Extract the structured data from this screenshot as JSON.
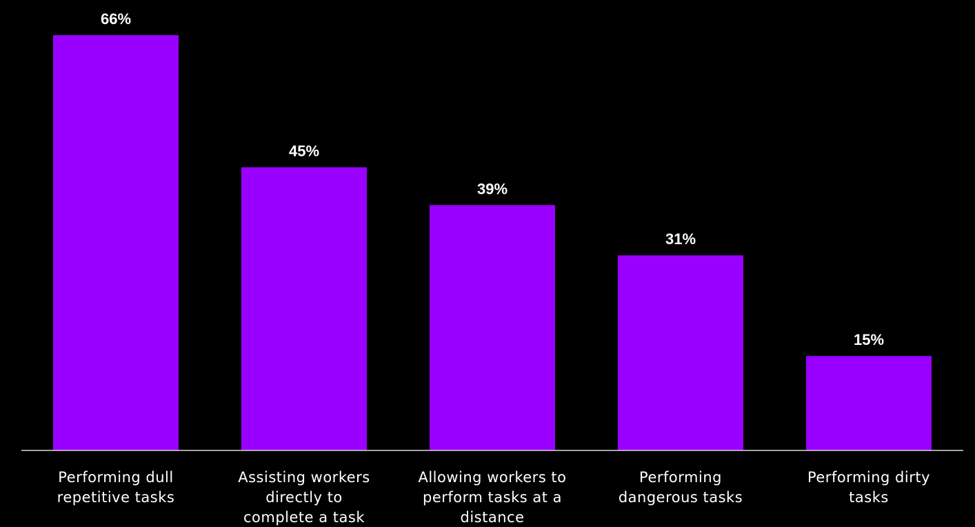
{
  "chart_data": {
    "type": "bar",
    "categories": [
      "Performing dull repetitive tasks",
      "Assisting workers directly to complete a task",
      "Allowing workers to perform tasks at a distance",
      "Performing dangerous tasks",
      "Performing dirty tasks"
    ],
    "category_lines": [
      [
        "Performing dull",
        "repetitive tasks"
      ],
      [
        "Assisting workers",
        "directly to",
        "complete a task"
      ],
      [
        "Allowing workers to",
        "perform tasks at a",
        "distance"
      ],
      [
        "Performing",
        "dangerous tasks"
      ],
      [
        "Performing dirty",
        "tasks"
      ]
    ],
    "values": [
      66,
      45,
      39,
      31,
      15
    ],
    "value_labels": [
      "66%",
      "45%",
      "39%",
      "31%",
      "15%"
    ],
    "unit": "%",
    "title": "",
    "xlabel": "",
    "ylabel": "",
    "ylim": [
      0,
      66
    ],
    "grid": false,
    "legend": "none",
    "colors": {
      "bar": "#9900ff",
      "background": "#000000",
      "text": "#ffffff",
      "axis": "#d9d9d9"
    }
  }
}
